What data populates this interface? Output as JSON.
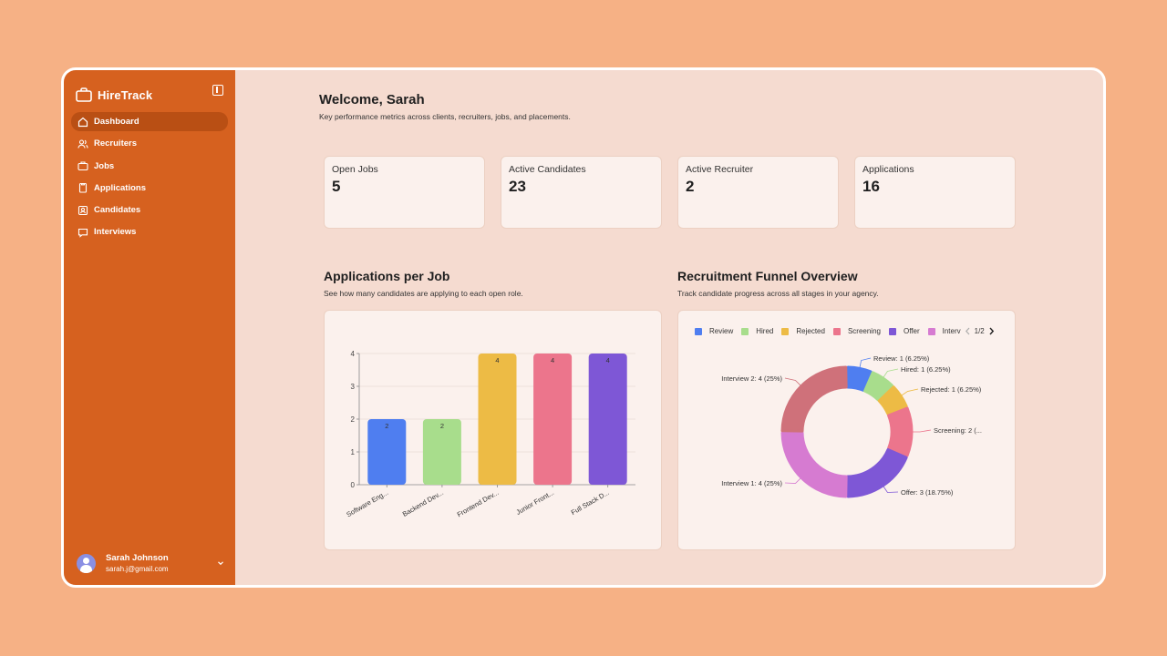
{
  "app": {
    "name": "HireTrack"
  },
  "sidebar": {
    "items": [
      {
        "label": "Dashboard",
        "icon": "home-icon",
        "active": true
      },
      {
        "label": "Recruiters",
        "icon": "users-icon"
      },
      {
        "label": "Jobs",
        "icon": "briefcase-icon"
      },
      {
        "label": "Applications",
        "icon": "clipboard-icon"
      },
      {
        "label": "Candidates",
        "icon": "contact-icon"
      },
      {
        "label": "Interviews",
        "icon": "message-icon"
      }
    ]
  },
  "user": {
    "name": "Sarah Johnson",
    "email": "sarah.j@gmail.com"
  },
  "header": {
    "title": "Welcome, Sarah",
    "subtitle": "Key performance metrics across clients, recruiters, jobs, and placements."
  },
  "stats": [
    {
      "label": "Open Jobs",
      "value": "5"
    },
    {
      "label": "Active Candidates",
      "value": "23"
    },
    {
      "label": "Active Recruiter",
      "value": "2"
    },
    {
      "label": "Applications",
      "value": "16"
    }
  ],
  "bar_section": {
    "title": "Applications per Job",
    "subtitle": "See how many candidates are applying to each open role."
  },
  "funnel_section": {
    "title": "Recruitment Funnel Overview",
    "subtitle": "Track candidate progress across all stages in your agency.",
    "pager": "1/2"
  },
  "colors": {
    "sidebar": "#d6611f",
    "accent_active": "#b94f14",
    "background": "#f6b185"
  },
  "chart_data": [
    {
      "type": "bar",
      "categories": [
        "Software Eng...",
        "Backend Dev...",
        "Frontend Dev...",
        "Junior Front...",
        "Full Stack D..."
      ],
      "values": [
        2,
        2,
        4,
        4,
        4
      ],
      "colors": [
        "#4f7ef0",
        "#a8dd8c",
        "#edbb45",
        "#ec758c",
        "#7e57d6"
      ],
      "ylim": [
        0,
        4
      ],
      "yticks": [
        0,
        1,
        2,
        3,
        4
      ],
      "grid": true
    },
    {
      "type": "pie",
      "legend": [
        "Review",
        "Hired",
        "Rejected",
        "Screening",
        "Offer",
        "Interv"
      ],
      "legend_colors": [
        "#4f7ef0",
        "#a8dd8c",
        "#edbb45",
        "#ec758c",
        "#7e57d6",
        "#d67bd1"
      ],
      "slices": [
        {
          "name": "Review",
          "value": 1,
          "label": "Review: 1 (6.25%)",
          "color": "#4f7ef0"
        },
        {
          "name": "Hired",
          "value": 1,
          "label": "Hired: 1 (6.25%)",
          "color": "#a8dd8c"
        },
        {
          "name": "Rejected",
          "value": 1,
          "label": "Rejected: 1 (6.25%)",
          "color": "#edbb45"
        },
        {
          "name": "Screening",
          "value": 2,
          "label": "Screening: 2 (...",
          "color": "#ec758c"
        },
        {
          "name": "Offer",
          "value": 3,
          "label": "Offer: 3 (18.75%)",
          "color": "#7e57d6"
        },
        {
          "name": "Interview 1",
          "value": 4,
          "label": "Interview 1: 4 (25%)",
          "color": "#d67bd1"
        },
        {
          "name": "Interview 2",
          "value": 4,
          "label": "Interview 2: 4 (25%)",
          "color": "#cf717a"
        }
      ]
    }
  ]
}
